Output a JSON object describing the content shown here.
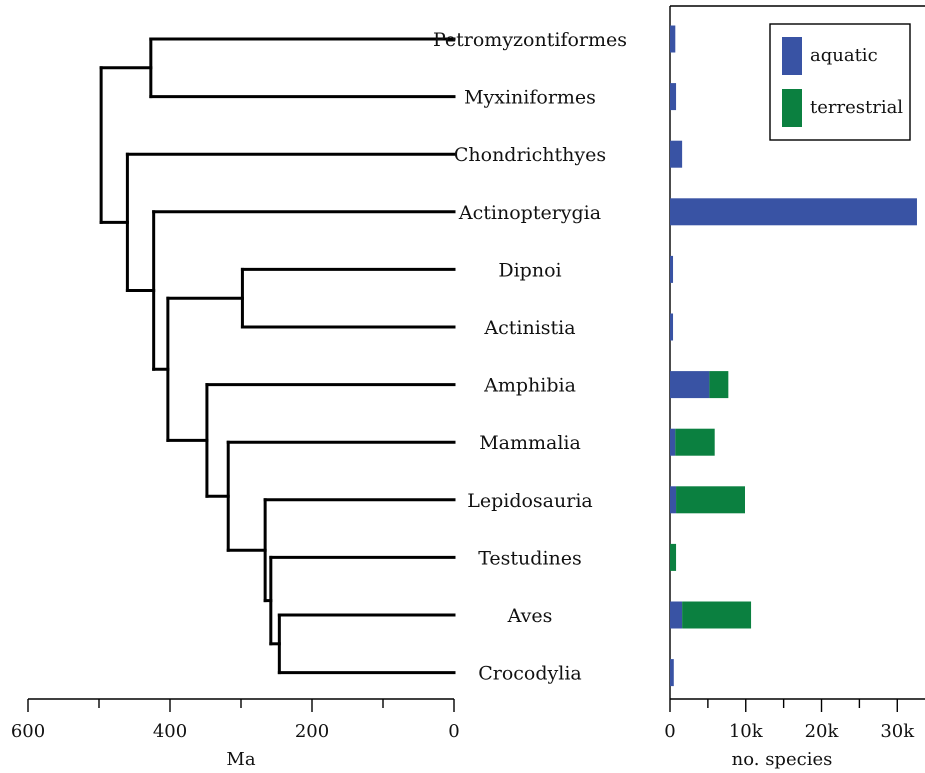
{
  "chart_data": [
    {
      "type": "dendrogram",
      "xlabel": "Ma",
      "xlim": [
        600,
        0
      ],
      "ticks": [
        {
          "value": 600,
          "label": "600"
        },
        {
          "value": 400,
          "label": "400"
        },
        {
          "value": 200,
          "label": "200"
        },
        {
          "value": 0,
          "label": "0"
        }
      ],
      "taxa": [
        "Petromyzontiformes",
        "Myxiniformes",
        "Chondrichthyes",
        "Actinopterygia",
        "Dipnoi",
        "Actinistia",
        "Amphibia",
        "Mammalia",
        "Lepidosauria",
        "Testudines",
        "Aves",
        "Crocodylia"
      ],
      "nodes": [
        {
          "age": 427,
          "children": [
            "Petromyzontiformes",
            "Myxiniformes"
          ]
        },
        {
          "age": 298,
          "children": [
            "Dipnoi",
            "Actinistia"
          ]
        },
        {
          "age": 246,
          "children": [
            "Aves",
            "Crocodylia"
          ]
        },
        {
          "age": 258,
          "children": [
            "Testudines",
            "n2"
          ]
        },
        {
          "age": 266,
          "children": [
            "Lepidosauria",
            "n3"
          ]
        },
        {
          "age": 318,
          "children": [
            "Mammalia",
            "n4"
          ]
        },
        {
          "age": 348,
          "children": [
            "Amphibia",
            "n5"
          ]
        },
        {
          "age": 403,
          "children": [
            "n1",
            "n6"
          ]
        },
        {
          "age": 423,
          "children": [
            "Actinopterygia",
            "n7"
          ]
        },
        {
          "age": 460,
          "children": [
            "Chondrichthyes",
            "n8"
          ]
        },
        {
          "age": 497,
          "children": [
            "n0",
            "n9"
          ]
        }
      ]
    },
    {
      "type": "bar",
      "orientation": "horizontal",
      "stacked": true,
      "xlabel": "no. species",
      "xlim": [
        0,
        35000
      ],
      "ticks": [
        {
          "value": 0,
          "label": "0"
        },
        {
          "value": 10000,
          "label": "10k"
        },
        {
          "value": 20000,
          "label": "20k"
        },
        {
          "value": 30000,
          "label": "30k"
        }
      ],
      "categories": [
        "Petromyzontiformes",
        "Myxiniformes",
        "Chondrichthyes",
        "Actinopterygia",
        "Dipnoi",
        "Actinistia",
        "Amphibia",
        "Mammalia",
        "Lepidosauria",
        "Testudines",
        "Aves",
        "Crocodylia"
      ],
      "series": [
        {
          "name": "aquatic",
          "color": "#3953a4",
          "values": [
            700,
            800,
            1600,
            32600,
            400,
            400,
            5200,
            700,
            800,
            0,
            1600,
            500
          ]
        },
        {
          "name": "terrestrial",
          "color": "#0b8040",
          "values": [
            0,
            0,
            0,
            0,
            0,
            0,
            2500,
            5200,
            9100,
            800,
            9100,
            0
          ]
        }
      ],
      "legend_position": "top-right"
    }
  ]
}
